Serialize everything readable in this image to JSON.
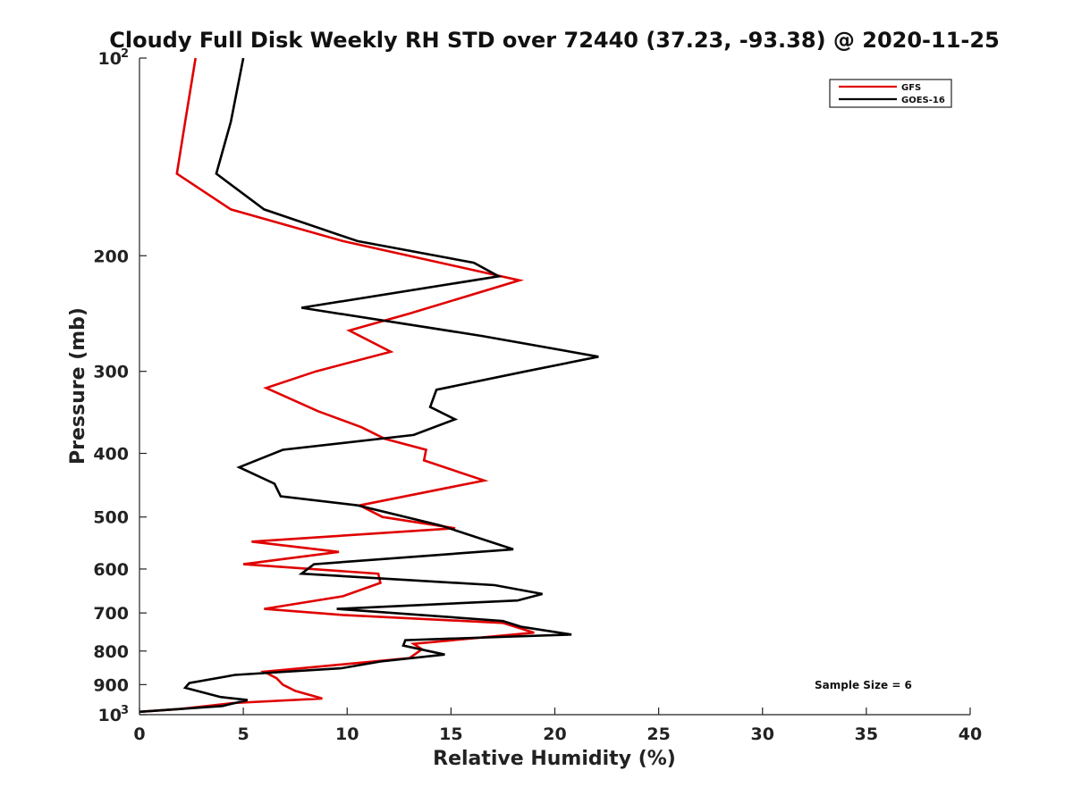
{
  "chart_data": {
    "type": "line",
    "title": "Cloudy Full Disk Weekly RH STD over 72440 (37.23, -93.38) @ 2020-11-25",
    "xlabel": "Relative Humidity (%)",
    "ylabel": "Pressure (mb)",
    "xlim": [
      0,
      40
    ],
    "ylim": [
      100,
      1000
    ],
    "y_scale": "log",
    "y_reversed": true,
    "x_ticks": [
      "0",
      "5",
      "10",
      "15",
      "20",
      "25",
      "30",
      "35",
      "40"
    ],
    "y_ticks": [
      {
        "value": 100,
        "label": "10",
        "sup": "2"
      },
      {
        "value": 200,
        "label": "200",
        "sup": ""
      },
      {
        "value": 300,
        "label": "300",
        "sup": ""
      },
      {
        "value": 400,
        "label": "400",
        "sup": ""
      },
      {
        "value": 500,
        "label": "500",
        "sup": ""
      },
      {
        "value": 600,
        "label": "600",
        "sup": ""
      },
      {
        "value": 700,
        "label": "700",
        "sup": ""
      },
      {
        "value": 800,
        "label": "800",
        "sup": ""
      },
      {
        "value": 900,
        "label": "900",
        "sup": ""
      },
      {
        "value": 1000,
        "label": "10",
        "sup": "3"
      }
    ],
    "legend_position": "top-right",
    "annotation": "Sample Size = 6",
    "series": [
      {
        "name": "GFS",
        "color": "#e00000",
        "points": [
          [
            2.7,
            100
          ],
          [
            2.2,
            125
          ],
          [
            1.8,
            150
          ],
          [
            4.4,
            170
          ],
          [
            9.8,
            190
          ],
          [
            18.3,
            218
          ],
          [
            13.0,
            245
          ],
          [
            10.1,
            260
          ],
          [
            12.1,
            280
          ],
          [
            8.5,
            300
          ],
          [
            6.1,
            318
          ],
          [
            8.6,
            345
          ],
          [
            10.7,
            365
          ],
          [
            11.8,
            380
          ],
          [
            13.8,
            395
          ],
          [
            13.7,
            410
          ],
          [
            16.6,
            440
          ],
          [
            10.6,
            480
          ],
          [
            11.7,
            500
          ],
          [
            15.2,
            520
          ],
          [
            5.4,
            545
          ],
          [
            9.6,
            565
          ],
          [
            5.0,
            590
          ],
          [
            11.5,
            610
          ],
          [
            11.6,
            630
          ],
          [
            9.8,
            660
          ],
          [
            6.0,
            690
          ],
          [
            9.8,
            705
          ],
          [
            17.5,
            725
          ],
          [
            19.0,
            750
          ],
          [
            13.2,
            780
          ],
          [
            13.6,
            795
          ],
          [
            13.0,
            820
          ],
          [
            6.0,
            860
          ],
          [
            6.6,
            880
          ],
          [
            6.9,
            900
          ],
          [
            7.5,
            920
          ],
          [
            8.8,
            945
          ],
          [
            4.5,
            960
          ],
          [
            2.0,
            980
          ],
          [
            0.0,
            990
          ]
        ]
      },
      {
        "name": "GOES-16",
        "color": "#000000",
        "points": [
          [
            5.0,
            100
          ],
          [
            4.4,
            125
          ],
          [
            3.7,
            150
          ],
          [
            6.0,
            170
          ],
          [
            10.5,
            190
          ],
          [
            16.1,
            205
          ],
          [
            17.3,
            215
          ],
          [
            7.8,
            240
          ],
          [
            16.5,
            265
          ],
          [
            22.1,
            285
          ],
          [
            18.6,
            300
          ],
          [
            14.3,
            320
          ],
          [
            14.0,
            340
          ],
          [
            15.2,
            355
          ],
          [
            13.2,
            375
          ],
          [
            6.9,
            395
          ],
          [
            4.8,
            420
          ],
          [
            6.5,
            445
          ],
          [
            6.8,
            465
          ],
          [
            10.5,
            480
          ],
          [
            14.5,
            515
          ],
          [
            18.0,
            560
          ],
          [
            8.4,
            590
          ],
          [
            7.8,
            610
          ],
          [
            17.1,
            635
          ],
          [
            19.4,
            655
          ],
          [
            18.2,
            670
          ],
          [
            9.5,
            690
          ],
          [
            17.5,
            720
          ],
          [
            18.4,
            735
          ],
          [
            20.8,
            755
          ],
          [
            12.8,
            770
          ],
          [
            12.7,
            785
          ],
          [
            14.7,
            810
          ],
          [
            11.6,
            830
          ],
          [
            9.7,
            850
          ],
          [
            4.6,
            870
          ],
          [
            2.4,
            895
          ],
          [
            2.2,
            910
          ],
          [
            3.9,
            940
          ],
          [
            5.2,
            950
          ],
          [
            4.0,
            970
          ],
          [
            0.0,
            990
          ]
        ]
      }
    ]
  }
}
